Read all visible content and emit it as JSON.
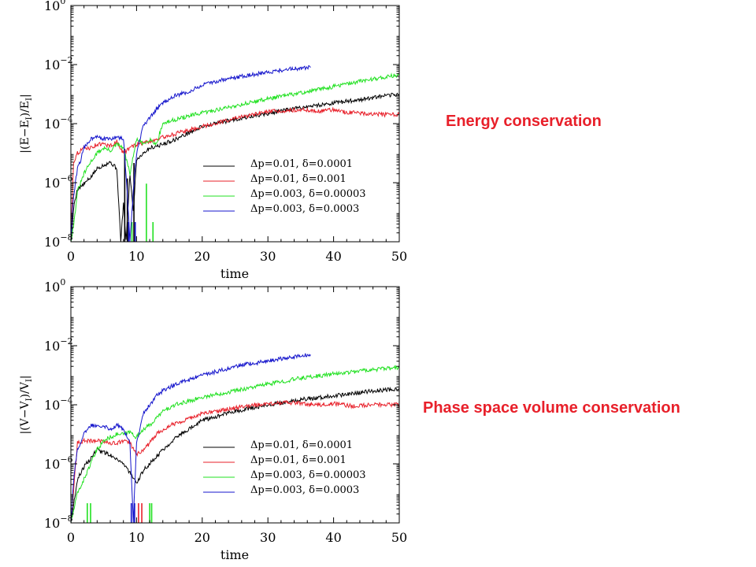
{
  "captions": {
    "energy": "Energy conservation",
    "volume": "Phase space volume conservation",
    "color": "#e8202a"
  },
  "chart_data": [
    {
      "type": "line",
      "title": "",
      "xlabel": "time",
      "ylabel": "|(E−E_I)/E_I|",
      "ylabel_main": "|(E−E",
      "ylabel_sub1": "I",
      "ylabel_mid": ")/E",
      "ylabel_sub2": "I",
      "ylabel_end": "|",
      "xlim": [
        0,
        50
      ],
      "ylim": [
        1e-08,
        1
      ],
      "yscale": "log",
      "grid": false,
      "legend_position": "lower-right",
      "x_ticks": [
        "0",
        "10",
        "20",
        "30",
        "40",
        "50"
      ],
      "y_ticks": [
        {
          "value": 1,
          "base": "10",
          "exp": "0"
        },
        {
          "value": 0.01,
          "base": "10",
          "exp": "−2"
        },
        {
          "value": 0.0001,
          "base": "10",
          "exp": "−4"
        },
        {
          "value": 1e-06,
          "base": "10",
          "exp": "−6"
        },
        {
          "value": 1e-08,
          "base": "10",
          "exp": "−8"
        }
      ],
      "series": [
        {
          "name": "Δp=0.01, δ=0.0001",
          "color": "#000000",
          "x": [
            0,
            0.5,
            1,
            2,
            3,
            4,
            5,
            6,
            7,
            7.6,
            8,
            8.4,
            9,
            9.5,
            10,
            11,
            12,
            14,
            16,
            20,
            25,
            30,
            35,
            40,
            45,
            50
          ],
          "y": [
            1e-08,
            2e-07,
            6e-07,
            9e-07,
            1.5e-06,
            3e-06,
            4e-06,
            5e-06,
            3e-06,
            1e-08,
            2e-07,
            1e-08,
            2e-06,
            1e-07,
            6e-06,
            1e-05,
            1.5e-05,
            2e-05,
            3e-05,
            8e-05,
            0.00014,
            0.00022,
            0.00035,
            0.0005,
            0.0007,
            0.001
          ],
          "spikes": [
            [
              8.2,
              3e-06
            ],
            [
              8.6,
              3e-07
            ],
            [
              9.6,
              1e-06
            ]
          ]
        },
        {
          "name": "Δp=0.01, δ=0.001",
          "color": "#e8202a",
          "x": [
            0,
            0.4,
            1,
            2,
            3,
            4,
            5,
            6,
            6.5,
            7,
            8,
            9,
            10,
            12,
            15,
            20,
            25,
            30,
            33,
            35,
            38,
            40,
            42,
            45,
            48,
            50
          ],
          "y": [
            1e-08,
            5e-06,
            1e-05,
            1.5e-05,
            1.5e-05,
            2e-05,
            2e-05,
            1.8e-05,
            2e-05,
            2.5e-05,
            1e-05,
            1.5e-05,
            2e-05,
            2.5e-05,
            4e-05,
            8e-05,
            0.00015,
            0.00025,
            0.00028,
            0.0003,
            0.00026,
            0.0003,
            0.00024,
            0.00022,
            0.0002,
            0.0002
          ],
          "spikes": []
        },
        {
          "name": "Δp=0.003, δ=0.00003",
          "color": "#21e121",
          "x": [
            0,
            0.5,
            1,
            2,
            3,
            4,
            5,
            6,
            7,
            8,
            9,
            10,
            11,
            12,
            13,
            14,
            16,
            18,
            20,
            25,
            30,
            35,
            40,
            45,
            50
          ],
          "y": [
            1e-08,
            5e-08,
            5e-07,
            2e-06,
            5e-06,
            1e-05,
            1.5e-05,
            1.2e-05,
            2e-05,
            1.5e-05,
            2e-06,
            3e-05,
            2e-05,
            3e-05,
            2e-05,
            0.0001,
            0.00014,
            0.00018,
            0.00023,
            0.0004,
            0.0007,
            0.0011,
            0.0018,
            0.003,
            0.0045
          ],
          "spikes": [
            [
              9.3,
              1e-08
            ],
            [
              11.5,
              2e-07
            ],
            [
              12.5,
              1e-08
            ]
          ]
        },
        {
          "name": "Δp=0.003, δ=0.0003",
          "color": "#1515cc",
          "x": [
            0,
            0.3,
            0.7,
            1,
            1.5,
            2,
            3,
            4,
            5,
            6,
            7,
            8,
            8.5,
            9,
            9.5,
            10,
            11,
            12,
            13,
            14,
            15,
            16,
            18,
            20,
            23,
            26,
            30,
            33,
            36.5
          ],
          "y": [
            1e-08,
            2e-07,
            1e-06,
            3e-06,
            6e-06,
            1.5e-05,
            3e-05,
            4e-05,
            3e-05,
            3e-05,
            3.5e-05,
            3e-05,
            1e-06,
            1e-08,
            5e-07,
            1e-05,
            8e-05,
            0.00015,
            0.0003,
            0.0005,
            0.0007,
            0.0009,
            0.0012,
            0.002,
            0.003,
            0.004,
            0.0055,
            0.007,
            0.008
          ],
          "spikes": [
            [
              8.8,
              1e-08
            ],
            [
              9.8,
              1e-08
            ]
          ]
        }
      ]
    },
    {
      "type": "line",
      "title": "",
      "xlabel": "time",
      "ylabel": "|(V−V_I)/V_I|",
      "ylabel_main": "|(V−V",
      "ylabel_sub1": "I",
      "ylabel_mid": ")/V",
      "ylabel_sub2": "I",
      "ylabel_end": "|",
      "xlim": [
        0,
        50
      ],
      "ylim": [
        1e-08,
        1
      ],
      "yscale": "log",
      "grid": false,
      "legend_position": "lower-right",
      "x_ticks": [
        "0",
        "10",
        "20",
        "30",
        "40",
        "50"
      ],
      "y_ticks": [
        {
          "value": 1,
          "base": "10",
          "exp": "0"
        },
        {
          "value": 0.01,
          "base": "10",
          "exp": "−2"
        },
        {
          "value": 0.0001,
          "base": "10",
          "exp": "−4"
        },
        {
          "value": 1e-06,
          "base": "10",
          "exp": "−6"
        },
        {
          "value": 1e-08,
          "base": "10",
          "exp": "−8"
        }
      ],
      "series": [
        {
          "name": "Δp=0.01, δ=0.0001",
          "color": "#000000",
          "x": [
            0,
            1,
            2,
            3,
            4,
            5,
            6,
            7,
            8,
            9,
            10,
            11,
            12,
            14,
            16,
            20,
            25,
            30,
            35,
            40,
            45,
            50
          ],
          "y": [
            1e-08,
            3e-07,
            8e-07,
            1.5e-06,
            3e-06,
            2.5e-06,
            2e-06,
            1.5e-06,
            1e-06,
            5e-07,
            2e-07,
            6e-07,
            1e-06,
            3e-06,
            8e-06,
            3e-05,
            6e-05,
            0.0001,
            0.00015,
            0.0002,
            0.00028,
            0.00035
          ],
          "spikes": []
        },
        {
          "name": "Δp=0.01, δ=0.001",
          "color": "#e8202a",
          "x": [
            0,
            1,
            2,
            3,
            4,
            5,
            6,
            7,
            8,
            9,
            10,
            11,
            12,
            13,
            15,
            20,
            25,
            30,
            33,
            35,
            38,
            40,
            43,
            46,
            50
          ],
          "y": [
            1e-08,
            5e-06,
            6e-06,
            6e-06,
            6e-06,
            6e-06,
            5e-06,
            5e-06,
            6e-06,
            5e-06,
            2e-06,
            3e-06,
            5e-06,
            1e-05,
            2e-05,
            5e-05,
            8e-05,
            0.00011,
            0.00012,
            0.00011,
            0.0001,
            0.00011,
            9e-05,
            0.0001,
            0.0001
          ],
          "spikes": [
            [
              10.3,
              1e-08
            ],
            [
              10.8,
              1e-08
            ]
          ]
        },
        {
          "name": "Δp=0.003, δ=0.00003",
          "color": "#21e121",
          "x": [
            0,
            1,
            2,
            3,
            4,
            5,
            6,
            7,
            8,
            9,
            10,
            11,
            12,
            14,
            16,
            20,
            25,
            30,
            35,
            40,
            45,
            50
          ],
          "y": [
            1e-08,
            1e-07,
            3e-07,
            1e-06,
            3e-06,
            6e-06,
            8e-06,
            1e-05,
            1e-05,
            1.2e-05,
            8e-06,
            1.5e-05,
            2e-05,
            6e-05,
            0.0001,
            0.00018,
            0.0003,
            0.0005,
            0.0008,
            0.0011,
            0.0015,
            0.0018
          ],
          "spikes": [
            [
              2.5,
              1e-08
            ],
            [
              3.0,
              1e-08
            ],
            [
              12.0,
              1e-08
            ],
            [
              12.3,
              1e-08
            ]
          ]
        },
        {
          "name": "Δp=0.003, δ=0.0003",
          "color": "#1515cc",
          "x": [
            0,
            0.5,
            1,
            2,
            3,
            4,
            5,
            6,
            7,
            8,
            9,
            9.5,
            10,
            11,
            12,
            13,
            14,
            16,
            18,
            20,
            23,
            26,
            30,
            33,
            36.5
          ],
          "y": [
            1e-08,
            5e-07,
            3e-06,
            1e-05,
            2e-05,
            2e-05,
            2e-05,
            1.5e-05,
            2e-05,
            1.5e-05,
            5e-06,
            1e-08,
            5e-06,
            5e-05,
            0.0001,
            0.0002,
            0.0003,
            0.0005,
            0.0007,
            0.001,
            0.0015,
            0.0022,
            0.003,
            0.004,
            0.005
          ],
          "spikes": [
            [
              9.2,
              1e-08
            ],
            [
              9.7,
              1e-08
            ]
          ]
        }
      ]
    }
  ]
}
